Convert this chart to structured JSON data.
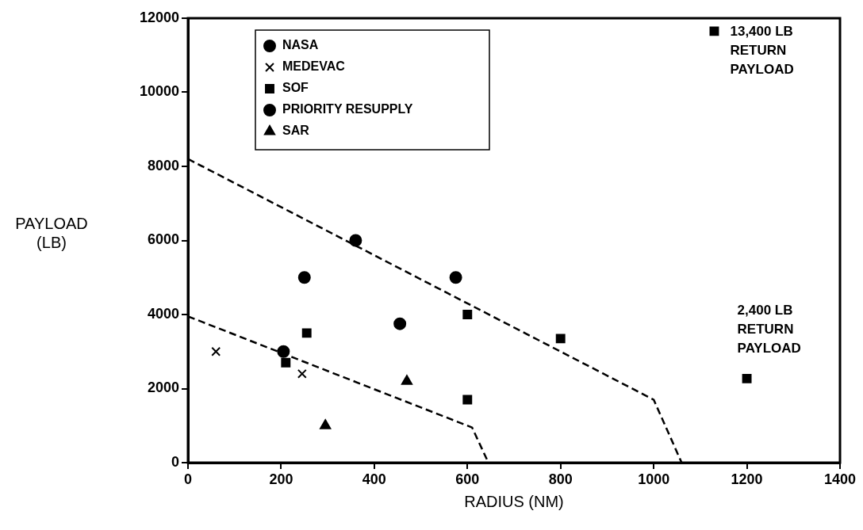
{
  "chart_data": {
    "type": "scatter",
    "xlabel": "RADIUS (NM)",
    "ylabel": "PAYLOAD\n(LB)",
    "xlim": [
      0,
      1400
    ],
    "xticks": [
      0,
      200,
      400,
      600,
      800,
      1000,
      1200,
      1400
    ],
    "ylim": [
      0,
      12000
    ],
    "yticks": [
      0,
      2000,
      4000,
      6000,
      8000,
      10000,
      12000
    ],
    "grid": false,
    "legend": "top left",
    "series": [
      {
        "name": "NASA",
        "type": "scatter",
        "marker": "circle",
        "color": "#000000",
        "x": [
          360,
          205
        ],
        "values": [
          6000,
          3000
        ]
      },
      {
        "name": "MEDEVAC",
        "type": "scatter",
        "marker": "cross",
        "color": "#000000",
        "x": [
          60,
          245
        ],
        "values": [
          3000,
          2400
        ]
      },
      {
        "name": "SOF",
        "type": "scatter",
        "marker": "square",
        "color": "#000000",
        "x": [
          255,
          210,
          600,
          600,
          800,
          1200,
          1130
        ],
        "values": [
          3500,
          2700,
          4000,
          1700,
          3350,
          2270,
          11650
        ]
      },
      {
        "name": "PRIORITY RESUPPLY",
        "type": "scatter",
        "marker": "circle",
        "color": "#000000",
        "x": [
          250,
          575,
          455
        ],
        "values": [
          5000,
          5000,
          3750
        ]
      },
      {
        "name": "SAR",
        "type": "scatter",
        "marker": "triangle",
        "color": "#000000",
        "x": [
          470,
          295
        ],
        "values": [
          2200,
          1000
        ]
      },
      {
        "type": "line",
        "marker": "none",
        "line_style": "dashed",
        "color": "#000000",
        "x": [
          0,
          1000,
          1060
        ],
        "values": [
          8200,
          1700,
          0
        ]
      },
      {
        "type": "line",
        "marker": "none",
        "line_style": "dashed",
        "color": "#000000",
        "x": [
          0,
          610,
          645
        ],
        "values": [
          3950,
          950,
          0
        ]
      }
    ],
    "annotations": [
      {
        "text": "13,400 LB\nRETURN\nPAYLOAD",
        "x": 1130,
        "y": 11650
      },
      {
        "text": "2,400 LB\nRETURN\nPAYLOAD",
        "x": 1200,
        "y": 2270
      }
    ]
  }
}
